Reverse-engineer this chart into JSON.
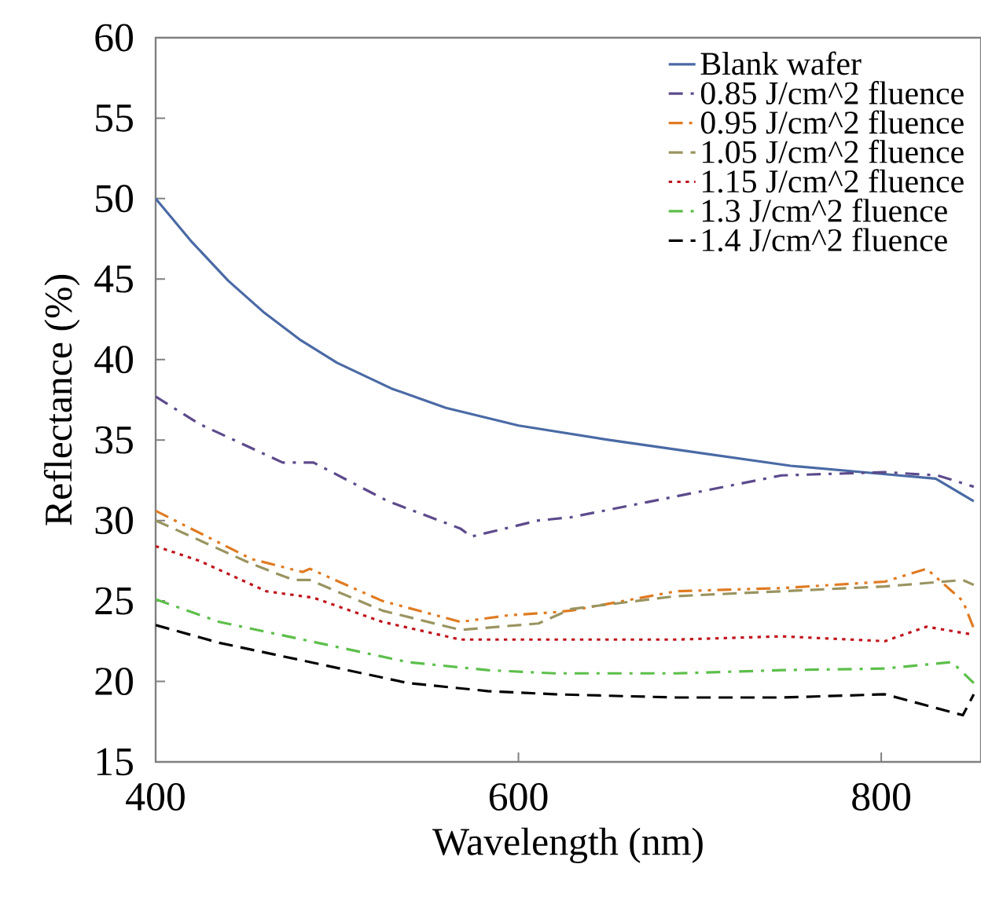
{
  "chart_data": {
    "type": "line",
    "xlabel": "Wavelength (nm)",
    "ylabel": "Reflectance (%)",
    "xlim": [
      400,
      855
    ],
    "ylim": [
      15,
      60
    ],
    "xticks": [
      400,
      600,
      800
    ],
    "yticks": [
      15,
      20,
      25,
      30,
      35,
      40,
      45,
      50,
      55,
      60
    ],
    "grid": false,
    "legend": "top right",
    "marker": "none",
    "series": [
      {
        "name": "Blank wafer",
        "color": "#4a6aa5",
        "line_style": "solid",
        "x": [
          400,
          420,
          440,
          460,
          480,
          500,
          530,
          560,
          600,
          650,
          700,
          750,
          800,
          830,
          851
        ],
        "values": [
          50,
          47.3,
          44.9,
          42.9,
          41.2,
          39.8,
          38.2,
          37.0,
          35.9,
          35.0,
          34.2,
          33.4,
          32.9,
          32.6,
          31.2
        ]
      },
      {
        "name": "0.85 J/cm^2 fluence",
        "color": "#5d4a8c",
        "line_style": "dashdot",
        "x": [
          400,
          424,
          470,
          487,
          528,
          568,
          574,
          611,
          629,
          687,
          745,
          802,
          831,
          851
        ],
        "values": [
          37.7,
          36.0,
          33.6,
          33.6,
          31.2,
          29.5,
          29.0,
          30.0,
          30.2,
          31.5,
          32.8,
          33.0,
          32.8,
          32.1
        ]
      },
      {
        "name": "0.95 J/cm^2 fluence",
        "color": "#e07b22",
        "line_style": "dashdotdot",
        "x": [
          400,
          453,
          481,
          485,
          525,
          568,
          594,
          620,
          629,
          687,
          745,
          802,
          825,
          845,
          851
        ],
        "values": [
          30.6,
          27.6,
          26.8,
          27.0,
          25.0,
          23.7,
          24.1,
          24.3,
          24.4,
          25.6,
          25.8,
          26.2,
          27.0,
          25.0,
          23.3
        ]
      },
      {
        "name": "1.05 J/cm^2 fluence",
        "color": "#9a9460",
        "line_style": "dashed",
        "x": [
          400,
          453,
          476,
          485,
          525,
          568,
          611,
          629,
          687,
          745,
          802,
          845,
          851
        ],
        "values": [
          30.0,
          27.3,
          26.3,
          26.3,
          24.4,
          23.2,
          23.6,
          24.5,
          25.3,
          25.6,
          25.9,
          26.3,
          26.0
        ]
      },
      {
        "name": "1.15 J/cm^2 fluence",
        "color": "#c0141c",
        "line_style": "dotted",
        "x": [
          400,
          424,
          461,
          487,
          525,
          568,
          620,
          687,
          745,
          802,
          825,
          851
        ],
        "values": [
          28.4,
          27.5,
          25.6,
          25.2,
          23.7,
          22.6,
          22.6,
          22.6,
          22.8,
          22.5,
          23.4,
          22.9
        ]
      },
      {
        "name": "1.3 J/cm^2 fluence",
        "color": "#5cbf4a",
        "line_style": "dashdot",
        "x": [
          400,
          435,
          481,
          539,
          583,
          620,
          687,
          745,
          802,
          839,
          851
        ],
        "values": [
          25.1,
          23.7,
          22.6,
          21.2,
          20.7,
          20.5,
          20.5,
          20.7,
          20.8,
          21.2,
          19.9
        ]
      },
      {
        "name": "1.4 J/cm^2 fluence",
        "color": "#000000",
        "line_style": "dashed",
        "x": [
          400,
          435,
          481,
          539,
          583,
          620,
          687,
          745,
          802,
          845,
          851
        ],
        "values": [
          23.5,
          22.4,
          21.3,
          19.9,
          19.4,
          19.2,
          19.0,
          19.0,
          19.2,
          17.9,
          19.2
        ]
      }
    ]
  }
}
